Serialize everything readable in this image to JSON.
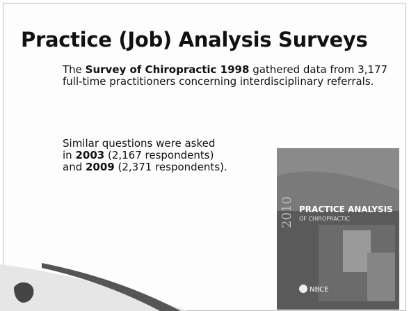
{
  "slide": {
    "title": "Practice (Job) Analysis Surveys",
    "paragraphs": [
      {
        "segments": [
          "The ",
          "Survey of Chiropractic 1998",
          " gathered data from 3,177 full-time practitioners concerning interdisciplinary referrals."
        ]
      },
      {
        "segments": [
          "Similar questions were asked",
          "in ",
          "2003",
          " (2,167 respondents)",
          "and ",
          "2009",
          " (2,371 respondents)."
        ]
      }
    ],
    "cover": {
      "title": "PRACTICE ANALYSIS",
      "subtitle": "OF CHIROPRACTIC",
      "year": "2010",
      "publisher": "NBCE"
    }
  }
}
